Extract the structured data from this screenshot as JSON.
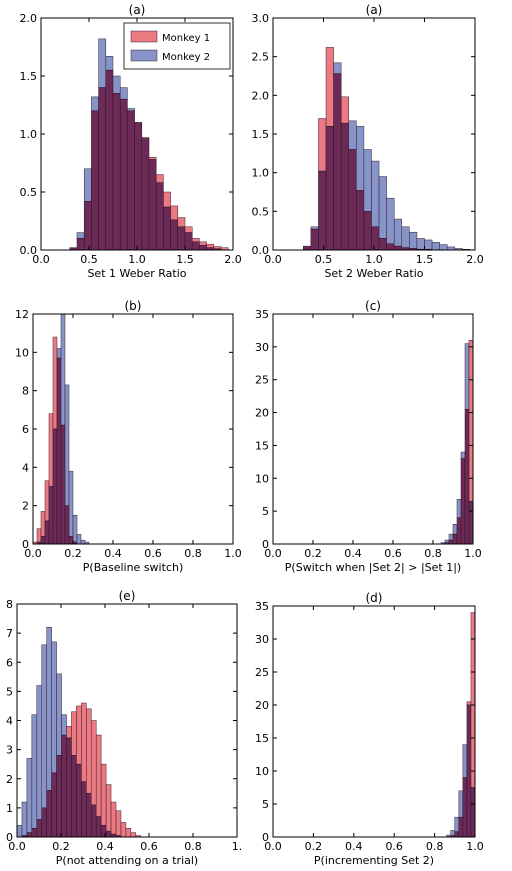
{
  "colors": {
    "monkey1": "#e8636c",
    "monkey2": "#7181be",
    "overlap": "#6c2b57"
  },
  "legend": [
    "Monkey 1",
    "Monkey 2"
  ],
  "chart_data": [
    {
      "type": "bar",
      "title": "(a)",
      "xlabel": "Set 1 Weber Ratio",
      "ylabel": "",
      "xlim": [
        0,
        2
      ],
      "ylim": [
        0,
        2
      ],
      "xticks": [
        "0.0",
        "0.5",
        "1.0",
        "1.5",
        "2.0"
      ],
      "yticks": [
        "0.0",
        "0.5",
        "1.0",
        "1.5",
        "2.0"
      ],
      "legend": "top-right",
      "bin_start": 0.3,
      "bin_width": 0.075,
      "series": [
        {
          "name": "Monkey 1",
          "values": [
            0.02,
            0.1,
            0.42,
            1.2,
            1.4,
            1.55,
            1.35,
            1.3,
            1.2,
            1.1,
            0.97,
            0.8,
            0.65,
            0.5,
            0.38,
            0.28,
            0.2,
            0.1,
            0.07,
            0.05,
            0.03,
            0.02
          ]
        },
        {
          "name": "Monkey 2",
          "values": [
            0.02,
            0.15,
            0.7,
            1.32,
            1.82,
            1.67,
            1.5,
            1.4,
            1.22,
            1.1,
            0.96,
            0.78,
            0.58,
            0.37,
            0.26,
            0.2,
            0.15,
            0.07,
            0.04,
            0.02,
            0.01,
            0.0
          ]
        }
      ]
    },
    {
      "type": "bar",
      "title": "(a)",
      "xlabel": "Set 2 Weber Ratio",
      "ylabel": "",
      "xlim": [
        0,
        2
      ],
      "ylim": [
        0,
        3
      ],
      "xticks": [
        "0.0",
        "0.5",
        "1.0",
        "1.5",
        "2.0"
      ],
      "yticks": [
        "0.0",
        "0.5",
        "1.0",
        "1.5",
        "2.0",
        "2.5",
        "3.0"
      ],
      "bin_start": 0.3,
      "bin_width": 0.075,
      "series": [
        {
          "name": "Monkey 1",
          "values": [
            0.05,
            0.27,
            1.7,
            2.62,
            2.28,
            1.98,
            1.3,
            0.77,
            0.5,
            0.3,
            0.15,
            0.08,
            0.05,
            0.03,
            0.02,
            0.01,
            0.01,
            0.0,
            0.0,
            0.0,
            0.0,
            0.0
          ]
        },
        {
          "name": "Monkey 2",
          "values": [
            0.05,
            0.3,
            1.02,
            1.6,
            2.42,
            1.64,
            1.67,
            1.6,
            1.3,
            1.15,
            0.95,
            0.67,
            0.4,
            0.3,
            0.23,
            0.15,
            0.13,
            0.1,
            0.07,
            0.04,
            0.02,
            0.01
          ]
        }
      ]
    },
    {
      "type": "bar",
      "title": "(b)",
      "xlabel": "P(Baseline switch)",
      "ylabel": "",
      "xlim": [
        0,
        1
      ],
      "ylim": [
        0,
        12
      ],
      "xticks": [
        "0.0",
        "0.2",
        "0.4",
        "0.6",
        "0.8",
        "1.0"
      ],
      "yticks": [
        "0",
        "2",
        "4",
        "6",
        "8",
        "10",
        "12"
      ],
      "bin_start": 0.0,
      "bin_width": 0.02,
      "series": [
        {
          "name": "Monkey 1",
          "values": [
            0.1,
            0.8,
            1.7,
            3.3,
            6.8,
            10.8,
            9.7,
            6.2,
            2.0,
            0.4,
            0.1,
            0.0,
            0.0,
            0.0,
            0.0
          ]
        },
        {
          "name": "Monkey 2",
          "values": [
            0.0,
            0.1,
            0.4,
            1.2,
            3.0,
            6.0,
            10.2,
            12.0,
            8.3,
            3.8,
            1.5,
            0.5,
            0.2,
            0.1,
            0.0
          ]
        }
      ]
    },
    {
      "type": "bar",
      "title": "(c)",
      "xlabel": "P(Switch when |Set 2| > |Set 1|)",
      "ylabel": "",
      "xlim": [
        0,
        1
      ],
      "ylim": [
        0,
        35
      ],
      "xticks": [
        "0.0",
        "0.2",
        "0.4",
        "0.6",
        "0.8",
        "1.0"
      ],
      "yticks": [
        "0",
        "5",
        "10",
        "15",
        "20",
        "25",
        "30",
        "35"
      ],
      "bin_start": 0.84,
      "bin_width": 0.02,
      "series": [
        {
          "name": "Monkey 1",
          "values": [
            0.05,
            0.2,
            0.6,
            1.5,
            4.0,
            13.0,
            20.5,
            31.0
          ]
        },
        {
          "name": "Monkey 2",
          "values": [
            0.2,
            0.6,
            1.5,
            3.0,
            6.8,
            14.0,
            30.5,
            6.5
          ]
        }
      ]
    },
    {
      "type": "bar",
      "title": "(e)",
      "xlabel": "P(not attending on a trial)",
      "ylabel": "",
      "xlim": [
        0,
        1
      ],
      "ylim": [
        0,
        8
      ],
      "xticks": [
        "0.0",
        "0.2",
        "0.4",
        "0.6",
        "0.8",
        "1."
      ],
      "yticks": [
        "0",
        "1",
        "2",
        "3",
        "4",
        "5",
        "6",
        "7",
        "8"
      ],
      "bin_start": 0.0,
      "bin_width": 0.0225,
      "series": [
        {
          "name": "Monkey 1",
          "values": [
            0.0,
            0.05,
            0.15,
            0.3,
            0.6,
            1.0,
            1.6,
            2.2,
            2.8,
            3.5,
            3.8,
            4.3,
            4.5,
            4.6,
            4.4,
            4.0,
            3.5,
            2.5,
            1.8,
            1.2,
            0.9,
            0.5,
            0.3,
            0.15,
            0.05
          ]
        },
        {
          "name": "Monkey 2",
          "values": [
            0.4,
            1.2,
            2.7,
            4.2,
            5.2,
            6.6,
            7.2,
            6.7,
            5.6,
            4.2,
            3.4,
            2.8,
            2.5,
            1.9,
            1.5,
            1.1,
            0.7,
            0.4,
            0.2,
            0.1,
            0.05,
            0.0,
            0.0,
            0.0,
            0.0
          ]
        }
      ]
    },
    {
      "type": "bar",
      "title": "(d)",
      "xlabel": "P(incrementing Set 2)",
      "ylabel": "",
      "xlim": [
        0,
        1
      ],
      "ylim": [
        0,
        35
      ],
      "xticks": [
        "0.0",
        "0.2",
        "0.4",
        "0.6",
        "0.8",
        "1.0"
      ],
      "yticks": [
        "0",
        "5",
        "10",
        "15",
        "20",
        "25",
        "30",
        "35"
      ],
      "bin_start": 0.86,
      "bin_width": 0.02,
      "series": [
        {
          "name": "Monkey 1",
          "values": [
            0.05,
            0.2,
            0.8,
            3.0,
            9.0,
            20.5,
            34.0
          ]
        },
        {
          "name": "Monkey 2",
          "values": [
            0.3,
            1.0,
            3.0,
            7.0,
            14.0,
            20.0,
            7.5
          ]
        }
      ]
    }
  ]
}
